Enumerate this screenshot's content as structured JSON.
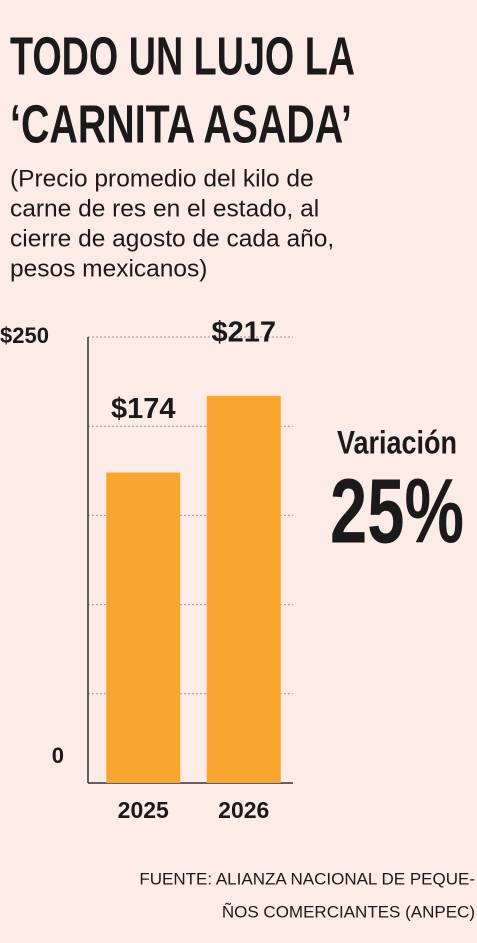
{
  "chart_data": {
    "type": "bar",
    "title": [
      "TODO UN LUJO LA",
      "‘CARNITA ASADA’"
    ],
    "subtitle": [
      "(Precio promedio del kilo de",
      "carne de res en el estado, al",
      "cierre de agosto de cada año,",
      "pesos mexicanos)"
    ],
    "categories": [
      "2025",
      "2026"
    ],
    "values": [
      174,
      217
    ],
    "value_labels": [
      "$174",
      "$217"
    ],
    "color": "#f9a630",
    "ylim": [
      0,
      250
    ],
    "yticks": [
      0,
      {
        "value": 250,
        "label": "$250"
      }
    ],
    "gridlines": [
      50,
      100,
      150,
      200
    ],
    "annotation": {
      "label": "Variación",
      "value": "25%",
      "color": "#e0312f"
    },
    "source": [
      "FUENTE: ALIANZA NACIONAL DE PEQUE-",
      "ÑOS COMERCIANTES (ANPEC)"
    ]
  }
}
